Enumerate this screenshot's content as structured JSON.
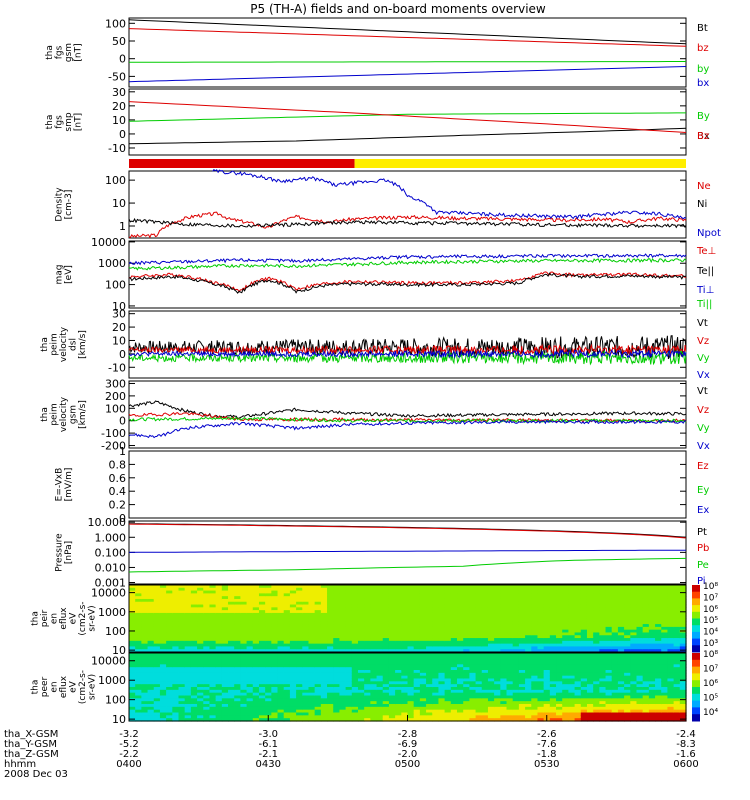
{
  "title": "P5 (TH-A) fields and on-board moments overview",
  "colors": {
    "black": "#000000",
    "red": "#dd0000",
    "green": "#00cc00",
    "blue": "#0000cc",
    "yellow": "#ffee00"
  },
  "chart_data": [
    {
      "type": "line",
      "id": "fgs_gsm",
      "ylabel": [
        "tha",
        "fgs",
        "gsm",
        "[nT]"
      ],
      "ylim": [
        -80,
        115
      ],
      "yticks": [
        -50,
        0,
        50,
        100
      ],
      "series": [
        {
          "name": "Bt",
          "color": "black",
          "x": [
            0,
            1
          ],
          "y": [
            110,
            42
          ]
        },
        {
          "name": "bz",
          "color": "red",
          "x": [
            0,
            1
          ],
          "y": [
            85,
            35
          ]
        },
        {
          "name": "by",
          "color": "green",
          "x": [
            0,
            1
          ],
          "y": [
            -10,
            -8
          ]
        },
        {
          "name": "bx",
          "color": "blue",
          "x": [
            0,
            1
          ],
          "y": [
            -65,
            -22
          ]
        }
      ]
    },
    {
      "type": "line",
      "id": "fgs_smp",
      "ylabel": [
        "tha",
        "fgs",
        "smp",
        "[nT]"
      ],
      "ylim": [
        -15,
        32
      ],
      "yticks": [
        -10,
        0,
        10,
        20,
        30
      ],
      "series": [
        {
          "name": "By",
          "color": "green",
          "x": [
            0,
            0.2,
            0.5,
            1
          ],
          "y": [
            9,
            11,
            14,
            15
          ]
        },
        {
          "name": "Bx",
          "color": "black",
          "x": [
            0,
            0.3,
            0.6,
            0.85,
            1
          ],
          "y": [
            -7,
            -5,
            -1,
            2,
            4
          ]
        },
        {
          "name": "Bz",
          "color": "red",
          "x": [
            0,
            0.4,
            0.8,
            1
          ],
          "y": [
            23,
            15,
            6,
            1
          ]
        }
      ]
    },
    {
      "type": "bar",
      "id": "mode_bar",
      "segments": [
        {
          "color": "red",
          "x": [
            0,
            0.405
          ]
        },
        {
          "color": "yellow",
          "x": [
            0.405,
            1
          ]
        }
      ]
    },
    {
      "type": "line",
      "id": "density",
      "ylabel": [
        "Density",
        "[cm-3]"
      ],
      "yscale": "log",
      "ylim": [
        0.3,
        250
      ],
      "yticks": [
        1,
        10,
        100
      ],
      "series": [
        {
          "name": "Ne",
          "color": "red",
          "x": [
            0,
            0.05,
            0.12,
            0.16,
            0.18,
            0.25,
            0.3,
            0.36,
            0.4,
            0.5,
            0.6,
            0.7,
            0.78,
            0.85,
            0.9,
            0.95,
            1
          ],
          "y": [
            0.35,
            0.4,
            2.8,
            3.5,
            2,
            0.8,
            2.5,
            1.5,
            2,
            2.5,
            2.2,
            2,
            1.8,
            2,
            1.5,
            2.2,
            1.8
          ]
        },
        {
          "name": "Ni",
          "color": "black",
          "x": [
            0,
            0.1,
            0.2,
            0.3,
            0.4,
            0.6,
            0.8,
            1
          ],
          "y": [
            1.8,
            1.2,
            1.0,
            1.2,
            1.5,
            1.3,
            1.1,
            1.0
          ]
        },
        {
          "name": "Npot",
          "color": "blue",
          "x": [
            0.15,
            0.2,
            0.27,
            0.33,
            0.37,
            0.46,
            0.5,
            0.55,
            0.68,
            0.8,
            0.9,
            0.95,
            1
          ],
          "y": [
            250,
            200,
            90,
            120,
            60,
            100,
            20,
            4,
            3,
            2.5,
            4,
            3.5,
            2
          ]
        }
      ]
    },
    {
      "type": "line",
      "id": "temperature",
      "ylabel": [
        "mag",
        "[eV]"
      ],
      "yscale": "log",
      "ylim": [
        8,
        11000
      ],
      "yticks": [
        10,
        100,
        1000,
        10000
      ],
      "series": [
        {
          "name": "Te⊥",
          "color": "red",
          "x": [
            0,
            0.08,
            0.15,
            0.2,
            0.25,
            0.3,
            0.35,
            0.4,
            0.5,
            0.6,
            0.7,
            0.75,
            0.8,
            0.9,
            1
          ],
          "y": [
            230,
            300,
            130,
            50,
            200,
            60,
            110,
            140,
            120,
            120,
            150,
            350,
            280,
            300,
            250
          ]
        },
        {
          "name": "Te||",
          "color": "black",
          "x": [
            0,
            0.08,
            0.15,
            0.2,
            0.25,
            0.3,
            0.35,
            0.4,
            0.5,
            0.6,
            0.7,
            0.75,
            0.8,
            0.9,
            1
          ],
          "y": [
            180,
            240,
            110,
            40,
            170,
            45,
            90,
            110,
            100,
            100,
            120,
            300,
            240,
            260,
            220
          ]
        },
        {
          "name": "Ti⊥",
          "color": "blue",
          "x": [
            0,
            0.1,
            0.2,
            0.3,
            0.4,
            0.5,
            0.7,
            1
          ],
          "y": [
            1000,
            1200,
            1400,
            1300,
            1600,
            2000,
            2200,
            2300
          ]
        },
        {
          "name": "Ti||",
          "color": "green",
          "x": [
            0,
            0.1,
            0.2,
            0.3,
            0.4,
            0.5,
            0.7,
            1
          ],
          "y": [
            550,
            650,
            800,
            750,
            900,
            1100,
            1300,
            1400
          ]
        }
      ]
    },
    {
      "type": "line",
      "id": "peim_dsl",
      "ylabel": [
        "tha",
        "peim",
        "velocity",
        "dsl",
        "[km/s]"
      ],
      "ylim": [
        -18,
        32
      ],
      "yticks": [
        -10,
        0,
        10,
        20,
        30
      ],
      "series": [
        {
          "name": "Vt",
          "color": "black",
          "base": 5,
          "amp": 9
        },
        {
          "name": "Vz",
          "color": "red",
          "base": 3,
          "amp": 4
        },
        {
          "name": "Vy",
          "color": "green",
          "base": -3,
          "amp": 5
        },
        {
          "name": "Vx",
          "color": "blue",
          "base": 0,
          "amp": 3
        }
      ]
    },
    {
      "type": "line",
      "id": "peim_gsm",
      "ylabel": [
        "tha",
        "peim",
        "velocity",
        "gsm",
        "[km/s]"
      ],
      "ylim": [
        -220,
        320
      ],
      "yticks": [
        -200,
        -100,
        0,
        100,
        200,
        300
      ],
      "series": [
        {
          "name": "Vt",
          "color": "black",
          "x": [
            0,
            0.05,
            0.1,
            0.15,
            0.2,
            0.3,
            0.4,
            0.5,
            0.7,
            0.9,
            1
          ],
          "y": [
            120,
            150,
            80,
            40,
            30,
            90,
            60,
            40,
            50,
            60,
            55
          ]
        },
        {
          "name": "Vz",
          "color": "red",
          "x": [
            0,
            0.1,
            0.2,
            0.3,
            1
          ],
          "y": [
            40,
            60,
            10,
            10,
            0
          ]
        },
        {
          "name": "Vy",
          "color": "green",
          "x": [
            0,
            0.2,
            0.4,
            1
          ],
          "y": [
            10,
            20,
            0,
            0
          ]
        },
        {
          "name": "Vx",
          "color": "blue",
          "x": [
            0,
            0.05,
            0.1,
            0.2,
            0.3,
            0.4,
            0.5,
            0.7,
            1
          ],
          "y": [
            -110,
            -130,
            -60,
            -20,
            -60,
            -30,
            -20,
            -10,
            -10
          ]
        }
      ]
    },
    {
      "type": "line",
      "id": "efield",
      "ylabel": [
        "E=-VxB",
        "[mV/m]"
      ],
      "ylim": [
        0,
        1
      ],
      "yticks": [
        0,
        0.2,
        0.4,
        0.6,
        0.8,
        1.0
      ],
      "series": [
        {
          "name": "Ez",
          "color": "red",
          "x": [],
          "y": []
        },
        {
          "name": "Ey",
          "color": "green",
          "x": [],
          "y": []
        },
        {
          "name": "Ex",
          "color": "blue",
          "x": [],
          "y": []
        }
      ]
    },
    {
      "type": "line",
      "id": "pressure",
      "ylabel": [
        "Pressure",
        "[nPa]"
      ],
      "yscale": "log",
      "ylim": [
        0.0008,
        12
      ],
      "yticks": [
        0.001,
        0.01,
        0.1,
        1,
        10
      ],
      "yticklabels": [
        "0.001",
        "0.010",
        "0.100",
        "1.000",
        "10.000"
      ],
      "series": [
        {
          "name": "Pt",
          "color": "black",
          "x": [
            0,
            1
          ],
          "y": [
            8,
            1.0
          ]
        },
        {
          "name": "Pb",
          "color": "red",
          "x": [
            0,
            1
          ],
          "y": [
            7.5,
            0.9
          ]
        },
        {
          "name": "Pe",
          "color": "green",
          "x": [
            0,
            0.3,
            0.6,
            0.8,
            1
          ],
          "y": [
            0.005,
            0.007,
            0.012,
            0.03,
            0.04
          ]
        },
        {
          "name": "Pi",
          "color": "blue",
          "x": [
            0,
            0.5,
            1
          ],
          "y": [
            0.1,
            0.12,
            0.14
          ]
        }
      ]
    },
    {
      "type": "heatmap",
      "id": "peir",
      "ylabel": [
        "tha",
        "peir",
        "en",
        "eflux",
        "eV",
        "(cm2-s-",
        "sr-eV)"
      ],
      "yscale": "log",
      "ylim": [
        8,
        25000
      ],
      "yticks": [
        10,
        100,
        1000,
        10000
      ],
      "cbar": {
        "min_exp": 3,
        "max_exp": 8,
        "labels": [
          "10³",
          "10⁴",
          "10⁵",
          "10⁶",
          "10⁷",
          "10⁸"
        ]
      }
    },
    {
      "type": "heatmap",
      "id": "peer",
      "ylabel": [
        "tha",
        "peer",
        "en",
        "eflux",
        "eV",
        "(cm2-s-",
        "sr-eV)"
      ],
      "yscale": "log",
      "ylim": [
        8,
        25000
      ],
      "yticks": [
        10,
        100,
        1000,
        10000
      ],
      "cbar": {
        "min_exp": 4,
        "max_exp": 8,
        "labels": [
          "10⁴",
          "10⁵",
          "10⁶",
          "10⁷",
          "10⁸"
        ]
      }
    }
  ],
  "x_axis": {
    "ticks": [
      "0400",
      "0430",
      "0500",
      "0530",
      "0600"
    ],
    "rows": [
      {
        "label": "tha_X-GSM",
        "values": [
          "-3.2",
          "-3.0",
          "-2.8",
          "-2.6",
          "-2.4"
        ]
      },
      {
        "label": "tha_Y-GSM",
        "values": [
          "-5.2",
          "-6.1",
          "-6.9",
          "-7.6",
          "-8.3"
        ]
      },
      {
        "label": "tha_Z-GSM",
        "values": [
          "-2.2",
          "-2.1",
          "-2.0",
          "-1.8",
          "-1.6"
        ]
      },
      {
        "label": "hhmm",
        "values": [
          "0400",
          "0430",
          "0500",
          "0530",
          "0600"
        ]
      }
    ],
    "date": "2008 Dec 03"
  }
}
